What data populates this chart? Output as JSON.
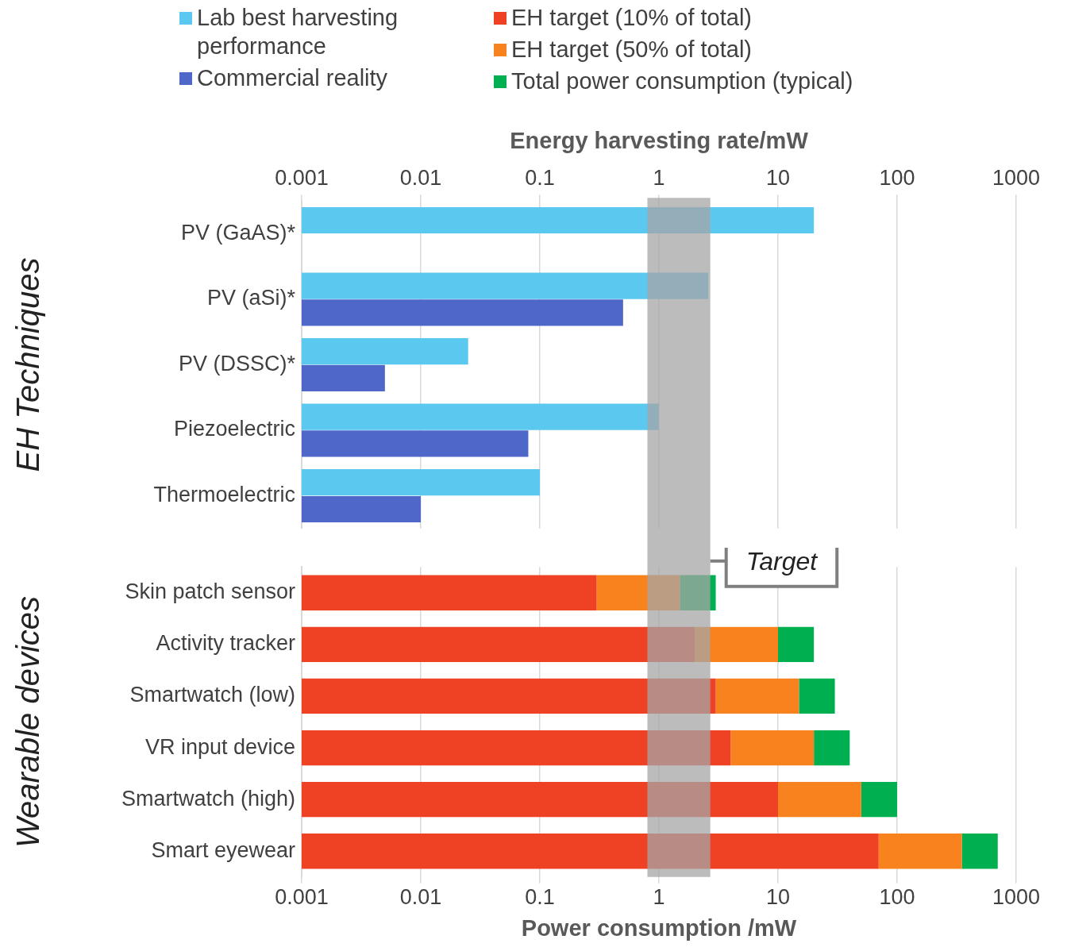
{
  "chart_data": [
    {
      "type": "bar",
      "orientation": "horizontal",
      "xlabel": "Energy harvesting rate/mW",
      "ylabel": "EH Techniques",
      "categories": [
        "PV (GaAS)*",
        "PV (aSi)*",
        "PV (DSSC)*",
        "Piezoelectric",
        "Thermoelectric"
      ],
      "series": [
        {
          "name": "Lab best harvesting performance",
          "color": "#5bc8f0",
          "values": [
            20,
            2.6,
            0.025,
            1,
            0.1
          ]
        },
        {
          "name": "Commercial reality",
          "color": "#4f67c8",
          "values": [
            null,
            0.5,
            0.005,
            0.08,
            0.01
          ]
        }
      ],
      "log": "x",
      "xlim": [
        0.001,
        1000
      ],
      "xticks": [
        0.001,
        0.01,
        0.1,
        1,
        10,
        100,
        1000
      ],
      "grid": "x",
      "legend": "top",
      "bands": [
        {
          "axis": "x",
          "from": 0.8,
          "to": 2.7,
          "color": "#a6a6a6"
        }
      ]
    },
    {
      "type": "bar",
      "orientation": "horizontal",
      "stacked": true,
      "xlabel": "Power consumption /mW",
      "ylabel": "Wearable devices",
      "categories": [
        "Skin patch sensor",
        "Activity tracker",
        "Smartwatch (low)",
        "VR input device",
        "Smartwatch (high)",
        "Smart eyewear"
      ],
      "series": [
        {
          "name": "EH target (10% of total)",
          "color": "#ef4123",
          "values": [
            0.3,
            2,
            3,
            4,
            10,
            70
          ]
        },
        {
          "name": "EH target (50% of total)",
          "color": "#f7821e",
          "values": [
            1.2,
            8,
            12,
            16,
            40,
            280
          ]
        },
        {
          "name": "Total power consumption (typical)",
          "color": "#00b050",
          "values": [
            1.5,
            10,
            15,
            20,
            50,
            350
          ]
        }
      ],
      "log": "x",
      "xlim": [
        0.001,
        1000
      ],
      "xticks": [
        0.001,
        0.01,
        0.1,
        1,
        10,
        100,
        1000
      ],
      "grid": "x",
      "legend": "top",
      "bands": [
        {
          "axis": "x",
          "from": 0.8,
          "to": 2.7,
          "label": "Target",
          "color": "#a6a6a6"
        }
      ]
    }
  ]
}
